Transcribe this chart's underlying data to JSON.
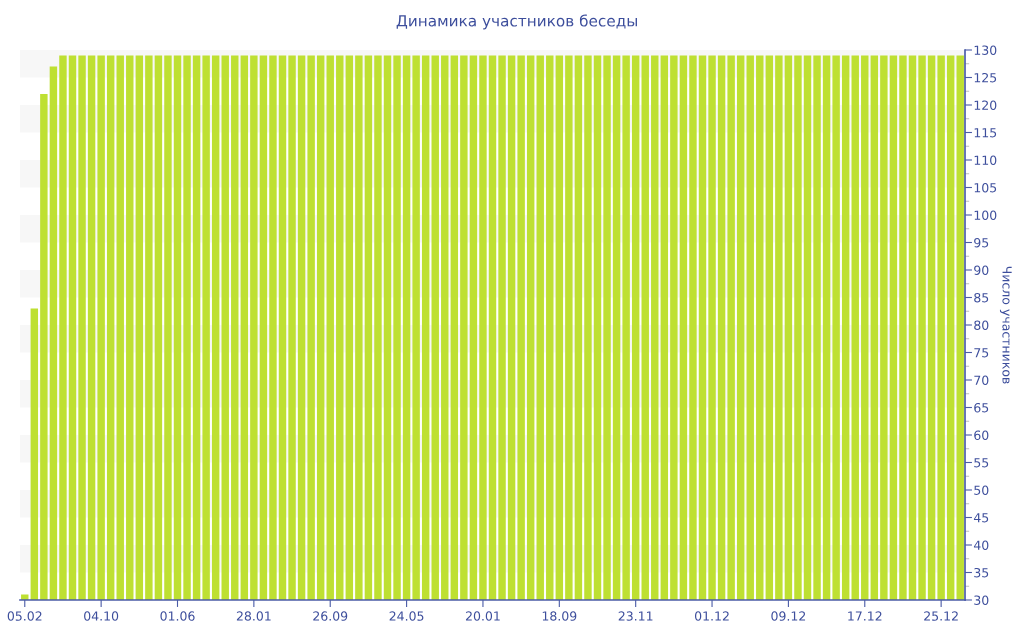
{
  "chart_data": {
    "type": "bar",
    "title": "Динамика участников беседы",
    "ylabel": "Число участников",
    "categories": [
      "05.02",
      null,
      null,
      null,
      null,
      null,
      null,
      null,
      "04.10",
      null,
      null,
      null,
      null,
      null,
      null,
      null,
      "01.06",
      null,
      null,
      null,
      null,
      null,
      null,
      null,
      "28.01",
      null,
      null,
      null,
      null,
      null,
      null,
      null,
      "26.09",
      null,
      null,
      null,
      null,
      null,
      null,
      null,
      "24.05",
      null,
      null,
      null,
      null,
      null,
      null,
      null,
      "20.01",
      null,
      null,
      null,
      null,
      null,
      null,
      null,
      "18.09",
      null,
      null,
      null,
      null,
      null,
      null,
      null,
      "23.11",
      null,
      null,
      null,
      null,
      null,
      null,
      null,
      "01.12",
      null,
      null,
      null,
      null,
      null,
      null,
      null,
      "09.12",
      null,
      null,
      null,
      null,
      null,
      null,
      null,
      "17.12",
      null,
      null,
      null,
      null,
      null,
      null,
      null,
      "25.12",
      null,
      null
    ],
    "color": "#bee032",
    "values": [
      31,
      83,
      122,
      127,
      129,
      129,
      129,
      129,
      129,
      129,
      129,
      129,
      129,
      129,
      129,
      129,
      129,
      129,
      129,
      129,
      129,
      129,
      129,
      129,
      129,
      129,
      129,
      129,
      129,
      129,
      129,
      129,
      129,
      129,
      129,
      129,
      129,
      129,
      129,
      129,
      129,
      129,
      129,
      129,
      129,
      129,
      129,
      129,
      129,
      129,
      129,
      129,
      129,
      129,
      129,
      129,
      129,
      129,
      129,
      129,
      129,
      129,
      129,
      129,
      129,
      129,
      129,
      129,
      129,
      129,
      129,
      129,
      129,
      129,
      129,
      129,
      129,
      129,
      129,
      129,
      129,
      129,
      129,
      129,
      129,
      129,
      129,
      129,
      129,
      129,
      129,
      129,
      129,
      129,
      129,
      129,
      129,
      129,
      129
    ],
    "ylim": [
      30,
      130
    ],
    "yticks": [
      30,
      35,
      40,
      45,
      50,
      55,
      60,
      65,
      70,
      75,
      80,
      85,
      90,
      95,
      100,
      105,
      110,
      115,
      120,
      125,
      130
    ],
    "bands": [
      {
        "axis": "y",
        "from": 35,
        "to": 40,
        "color": "#f7f7f7"
      },
      {
        "axis": "y",
        "from": 45,
        "to": 50,
        "color": "#f7f7f7"
      },
      {
        "axis": "y",
        "from": 55,
        "to": 60,
        "color": "#f7f7f7"
      },
      {
        "axis": "y",
        "from": 65,
        "to": 70,
        "color": "#f7f7f7"
      },
      {
        "axis": "y",
        "from": 75,
        "to": 80,
        "color": "#f7f7f7"
      },
      {
        "axis": "y",
        "from": 85,
        "to": 90,
        "color": "#f7f7f7"
      },
      {
        "axis": "y",
        "from": 95,
        "to": 100,
        "color": "#f7f7f7"
      },
      {
        "axis": "y",
        "from": 105,
        "to": 110,
        "color": "#f7f7f7"
      },
      {
        "axis": "y",
        "from": 115,
        "to": 120,
        "color": "#f7f7f7"
      },
      {
        "axis": "y",
        "from": 125,
        "to": 130,
        "color": "#f7f7f7"
      }
    ]
  }
}
